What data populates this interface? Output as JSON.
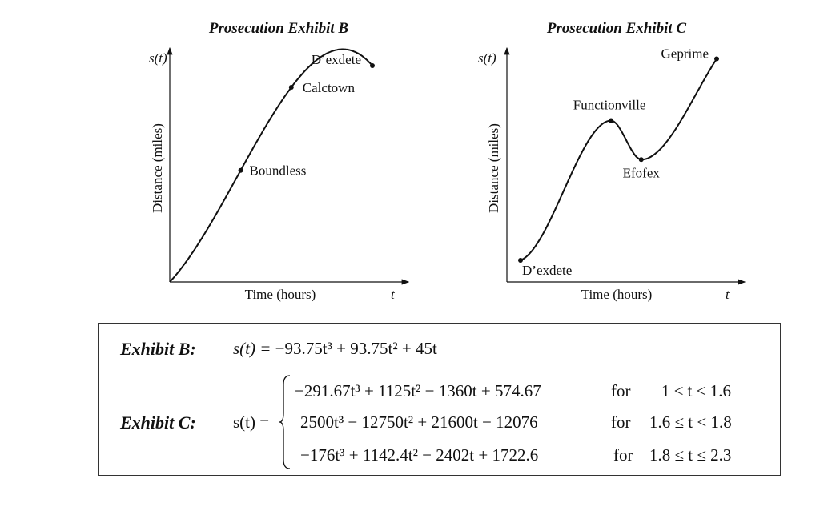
{
  "chart_data": [
    {
      "type": "line",
      "title": "Prosecution Exhibit B",
      "xlabel": "Time (hours)",
      "ylabel": "Distance (miles)",
      "y_axis_symbol": "s(t)",
      "x_axis_symbol": "t",
      "formula": {
        "label": "Exhibit B:",
        "lhs": "s(t) =",
        "rhs": "−93.75t³ + 93.75t² + 45t",
        "coeffs": [
          -93.75,
          93.75,
          45,
          0
        ]
      },
      "xlim": [
        0,
        1
      ],
      "ylim": [
        0,
        45
      ],
      "points": [
        {
          "label": "Boundless",
          "t": 0.35
        },
        {
          "label": "Calctown",
          "t": 0.6
        },
        {
          "label": "D’exdete",
          "t": 1.0
        }
      ]
    },
    {
      "type": "line",
      "title": "Prosecution Exhibit C",
      "xlabel": "Time (hours)",
      "ylabel": "Distance (miles)",
      "y_axis_symbol": "s(t)",
      "x_axis_symbol": "t",
      "xlim": [
        1,
        2.3
      ],
      "ylim": [
        48,
        100
      ],
      "formula": {
        "label": "Exhibit C:",
        "lhs": "s(t) =",
        "pieces": [
          {
            "expr": "−291.67t³ + 1125t² − 1360t + 574.67",
            "cond_for": "for",
            "cond": "1 ≤ t < 1.6",
            "coeffs": [
              -291.67,
              1125,
              -1360,
              574.67
            ],
            "range": [
              1,
              1.6
            ]
          },
          {
            "expr": "2500t³ − 12750t² + 21600t − 12076",
            "cond_for": "for",
            "cond": "1.6 ≤ t < 1.8",
            "coeffs": [
              2500,
              -12750,
              21600,
              -12076
            ],
            "range": [
              1.6,
              1.8
            ]
          },
          {
            "expr": "−176t³ + 1142.4t² − 2402t + 1722.6",
            "cond_for": "for",
            "cond": "1.8 ≤ t ≤ 2.3",
            "coeffs": [
              -176,
              1142.4,
              -2402,
              1722.6
            ],
            "range": [
              1.8,
              2.3
            ]
          }
        ]
      },
      "points": [
        {
          "label": "D’exdete",
          "t": 1.0
        },
        {
          "label": "Functionville",
          "t": 1.6
        },
        {
          "label": "Efofex",
          "t": 1.8
        },
        {
          "label": "Geprime",
          "t": 2.3
        }
      ]
    }
  ]
}
